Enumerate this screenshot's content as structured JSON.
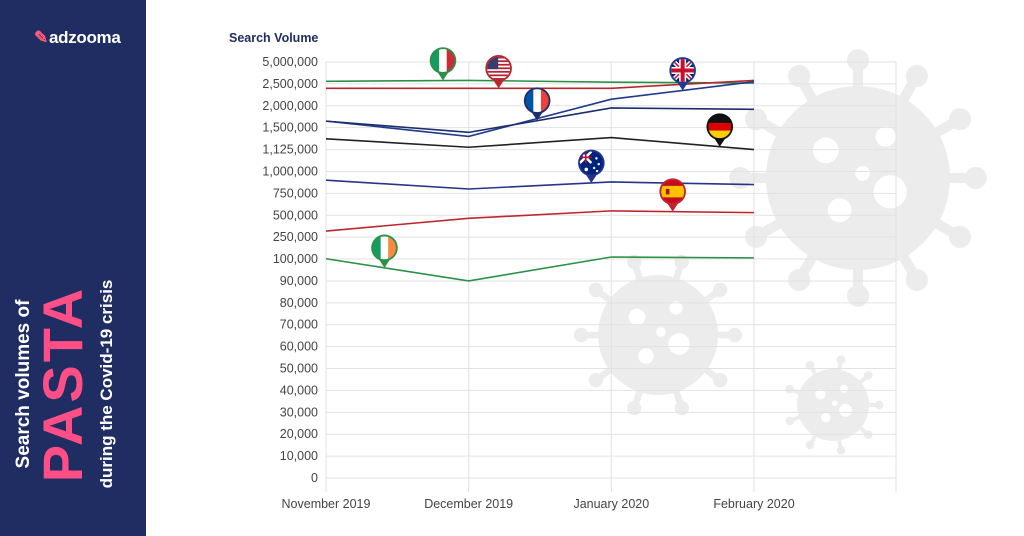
{
  "brand": {
    "name": "adzooma"
  },
  "sidebar_title": {
    "line1": "Search volumes of",
    "line2": "PASTA",
    "line3": "during the Covid-19 crisis"
  },
  "colors": {
    "sidebar": "#1f2d63",
    "accent": "#ff4f86",
    "grid": "#e3e3e3"
  },
  "chart_data": {
    "type": "line",
    "ylabel": "Search Volume",
    "categories": [
      "November 2019",
      "December 2019",
      "January 2020",
      "February 2020"
    ],
    "y_ticks": [
      "5,000,000",
      "2,500,000",
      "2,000,000",
      "1,500,000",
      "1,125,000",
      "1,000,000",
      "750,000",
      "500,000",
      "250,000",
      "100,000",
      "90,000",
      "80,000",
      "70,000",
      "60,000",
      "50,000",
      "40,000",
      "30,000",
      "20,000",
      "10,000",
      "0"
    ],
    "y_scale": "piecewise-categorical",
    "grid": "on",
    "legend": "flag markers on lines",
    "series": [
      {
        "name": "Italy",
        "flag": "italy",
        "color": "#2b9146",
        "values": [
          2800000,
          2900000,
          2700000,
          2600000
        ]
      },
      {
        "name": "United States",
        "flag": "usa",
        "color": "#b7272f",
        "values": [
          2400000,
          2400000,
          2400000,
          2900000
        ]
      },
      {
        "name": "United Kingdom",
        "flag": "uk",
        "color": "#1f3a8f",
        "values": [
          1650000,
          1350000,
          2150000,
          2750000
        ]
      },
      {
        "name": "France",
        "flag": "france",
        "color": "#1c2e6e",
        "values": [
          1650000,
          1420000,
          1950000,
          1920000
        ]
      },
      {
        "name": "Germany",
        "flag": "germany",
        "color": "#222222",
        "values": [
          1310000,
          1165000,
          1330000,
          1125000
        ]
      },
      {
        "name": "Australia",
        "flag": "australia",
        "color": "#27348b",
        "values": [
          900000,
          800000,
          880000,
          850000
        ]
      },
      {
        "name": "Spain",
        "flag": "spain",
        "color": "#c0272d",
        "values": [
          320000,
          465000,
          550000,
          530000
        ]
      },
      {
        "name": "Ireland",
        "flag": "ireland",
        "color": "#2b9146",
        "values": [
          102000,
          90000,
          114000,
          108000
        ]
      }
    ]
  }
}
